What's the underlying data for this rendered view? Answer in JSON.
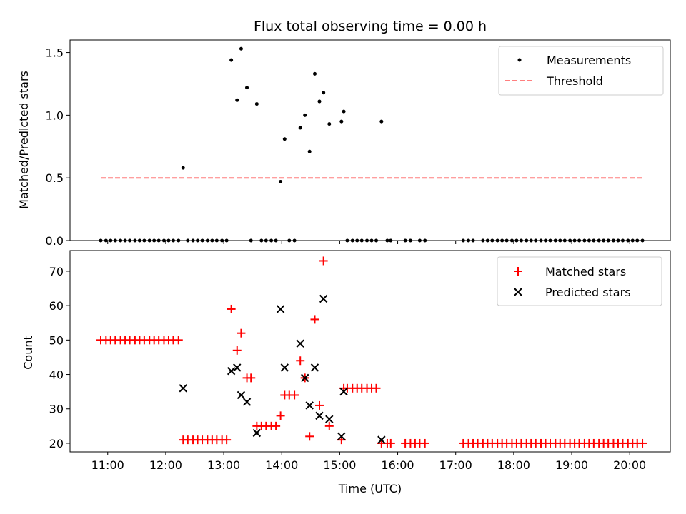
{
  "chart_data": [
    {
      "type": "scatter",
      "title": "Flux total observing time = 0.00 h",
      "xlabel": "",
      "ylabel": "Matched/Predicted stars",
      "xlim": [
        10.35,
        20.7
      ],
      "ylim": [
        0,
        1.6
      ],
      "yticks": [
        0.0,
        0.5,
        1.0,
        1.5
      ],
      "ytick_labels": [
        "0.0",
        "0.5",
        "1.0",
        "1.5"
      ],
      "legend": "top-right",
      "grid": false,
      "series": [
        {
          "name": "Measurements",
          "marker": "dot",
          "color": "#000000",
          "points": [
            [
              12.3,
              0.58
            ],
            [
              13.13,
              1.44
            ],
            [
              13.23,
              1.12
            ],
            [
              13.3,
              1.53
            ],
            [
              13.4,
              1.22
            ],
            [
              13.57,
              1.09
            ],
            [
              13.98,
              0.47
            ],
            [
              14.05,
              0.81
            ],
            [
              14.32,
              0.9
            ],
            [
              14.4,
              1.0
            ],
            [
              14.48,
              0.71
            ],
            [
              14.57,
              1.33
            ],
            [
              14.65,
              1.11
            ],
            [
              14.72,
              1.18
            ],
            [
              14.82,
              0.93
            ],
            [
              15.03,
              0.95
            ],
            [
              15.07,
              1.03
            ],
            [
              15.72,
              0.95
            ],
            [
              10.88,
              0
            ],
            [
              10.97,
              0
            ],
            [
              11.05,
              0
            ],
            [
              11.13,
              0
            ],
            [
              11.22,
              0
            ],
            [
              11.3,
              0
            ],
            [
              11.38,
              0
            ],
            [
              11.47,
              0
            ],
            [
              11.55,
              0
            ],
            [
              11.63,
              0
            ],
            [
              11.72,
              0
            ],
            [
              11.8,
              0
            ],
            [
              11.88,
              0
            ],
            [
              11.97,
              0
            ],
            [
              12.05,
              0
            ],
            [
              12.13,
              0
            ],
            [
              12.22,
              0
            ],
            [
              12.38,
              0
            ],
            [
              12.47,
              0
            ],
            [
              12.55,
              0
            ],
            [
              12.63,
              0
            ],
            [
              12.72,
              0
            ],
            [
              12.8,
              0
            ],
            [
              12.88,
              0
            ],
            [
              12.97,
              0
            ],
            [
              13.05,
              0
            ],
            [
              13.47,
              0
            ],
            [
              13.65,
              0
            ],
            [
              13.73,
              0
            ],
            [
              13.82,
              0
            ],
            [
              13.9,
              0
            ],
            [
              14.13,
              0
            ],
            [
              14.22,
              0
            ],
            [
              15.13,
              0
            ],
            [
              15.22,
              0
            ],
            [
              15.3,
              0
            ],
            [
              15.38,
              0
            ],
            [
              15.47,
              0
            ],
            [
              15.55,
              0
            ],
            [
              15.63,
              0
            ],
            [
              15.82,
              0
            ],
            [
              15.88,
              0
            ],
            [
              16.13,
              0
            ],
            [
              16.22,
              0
            ],
            [
              16.38,
              0
            ],
            [
              16.47,
              0
            ],
            [
              17.13,
              0
            ],
            [
              17.22,
              0
            ],
            [
              17.3,
              0
            ],
            [
              17.47,
              0
            ],
            [
              17.55,
              0
            ],
            [
              17.63,
              0
            ],
            [
              17.72,
              0
            ],
            [
              17.8,
              0
            ],
            [
              17.88,
              0
            ],
            [
              17.97,
              0
            ],
            [
              18.05,
              0
            ],
            [
              18.13,
              0
            ],
            [
              18.22,
              0
            ],
            [
              18.3,
              0
            ],
            [
              18.38,
              0
            ],
            [
              18.47,
              0
            ],
            [
              18.55,
              0
            ],
            [
              18.63,
              0
            ],
            [
              18.72,
              0
            ],
            [
              18.8,
              0
            ],
            [
              18.88,
              0
            ],
            [
              18.97,
              0
            ],
            [
              19.05,
              0
            ],
            [
              19.13,
              0
            ],
            [
              19.22,
              0
            ],
            [
              19.3,
              0
            ],
            [
              19.38,
              0
            ],
            [
              19.47,
              0
            ],
            [
              19.55,
              0
            ],
            [
              19.63,
              0
            ],
            [
              19.72,
              0
            ],
            [
              19.8,
              0
            ],
            [
              19.88,
              0
            ],
            [
              19.97,
              0
            ],
            [
              20.05,
              0
            ],
            [
              20.13,
              0
            ],
            [
              20.22,
              0
            ]
          ]
        },
        {
          "name": "Threshold",
          "type": "line",
          "style": "dashed",
          "color": "#ff7f7f",
          "points": [
            [
              10.88,
              0.5
            ],
            [
              20.22,
              0.5
            ]
          ]
        }
      ]
    },
    {
      "type": "scatter",
      "title": "",
      "xlabel": "Time (UTC)",
      "ylabel": "Count",
      "xlim": [
        10.35,
        20.7
      ],
      "ylim": [
        17.5,
        76
      ],
      "xticks": [
        11,
        12,
        13,
        14,
        15,
        16,
        17,
        18,
        19,
        20
      ],
      "xtick_labels": [
        "11:00",
        "12:00",
        "13:00",
        "14:00",
        "15:00",
        "16:00",
        "17:00",
        "18:00",
        "19:00",
        "20:00"
      ],
      "yticks": [
        20,
        30,
        40,
        50,
        60,
        70
      ],
      "ytick_labels": [
        "20",
        "30",
        "40",
        "50",
        "60",
        "70"
      ],
      "legend": "top-right",
      "grid": false,
      "series": [
        {
          "name": "Matched stars",
          "marker": "plus",
          "color": "#ff0000",
          "points": [
            [
              10.88,
              50
            ],
            [
              10.97,
              50
            ],
            [
              11.05,
              50
            ],
            [
              11.13,
              50
            ],
            [
              11.22,
              50
            ],
            [
              11.3,
              50
            ],
            [
              11.38,
              50
            ],
            [
              11.47,
              50
            ],
            [
              11.55,
              50
            ],
            [
              11.63,
              50
            ],
            [
              11.72,
              50
            ],
            [
              11.8,
              50
            ],
            [
              11.88,
              50
            ],
            [
              11.97,
              50
            ],
            [
              12.05,
              50
            ],
            [
              12.13,
              50
            ],
            [
              12.22,
              50
            ],
            [
              12.3,
              21
            ],
            [
              12.38,
              21
            ],
            [
              12.47,
              21
            ],
            [
              12.55,
              21
            ],
            [
              12.63,
              21
            ],
            [
              12.72,
              21
            ],
            [
              12.8,
              21
            ],
            [
              12.88,
              21
            ],
            [
              12.97,
              21
            ],
            [
              13.05,
              21
            ],
            [
              13.13,
              59
            ],
            [
              13.23,
              47
            ],
            [
              13.3,
              52
            ],
            [
              13.4,
              39
            ],
            [
              13.47,
              39
            ],
            [
              13.57,
              25
            ],
            [
              13.65,
              25
            ],
            [
              13.73,
              25
            ],
            [
              13.82,
              25
            ],
            [
              13.9,
              25
            ],
            [
              13.98,
              28
            ],
            [
              14.05,
              34
            ],
            [
              14.13,
              34
            ],
            [
              14.22,
              34
            ],
            [
              14.32,
              44
            ],
            [
              14.4,
              39
            ],
            [
              14.48,
              22
            ],
            [
              14.57,
              56
            ],
            [
              14.65,
              31
            ],
            [
              14.72,
              73
            ],
            [
              14.82,
              25
            ],
            [
              15.03,
              21
            ],
            [
              15.07,
              36
            ],
            [
              15.13,
              36
            ],
            [
              15.22,
              36
            ],
            [
              15.3,
              36
            ],
            [
              15.38,
              36
            ],
            [
              15.47,
              36
            ],
            [
              15.55,
              36
            ],
            [
              15.63,
              36
            ],
            [
              15.72,
              20
            ],
            [
              15.82,
              20
            ],
            [
              15.88,
              20
            ],
            [
              16.13,
              20
            ],
            [
              16.22,
              20
            ],
            [
              16.3,
              20
            ],
            [
              16.38,
              20
            ],
            [
              16.47,
              20
            ],
            [
              17.13,
              20
            ],
            [
              17.22,
              20
            ],
            [
              17.3,
              20
            ],
            [
              17.38,
              20
            ],
            [
              17.47,
              20
            ],
            [
              17.55,
              20
            ],
            [
              17.63,
              20
            ],
            [
              17.72,
              20
            ],
            [
              17.8,
              20
            ],
            [
              17.88,
              20
            ],
            [
              17.97,
              20
            ],
            [
              18.05,
              20
            ],
            [
              18.13,
              20
            ],
            [
              18.22,
              20
            ],
            [
              18.3,
              20
            ],
            [
              18.38,
              20
            ],
            [
              18.47,
              20
            ],
            [
              18.55,
              20
            ],
            [
              18.63,
              20
            ],
            [
              18.72,
              20
            ],
            [
              18.8,
              20
            ],
            [
              18.88,
              20
            ],
            [
              18.97,
              20
            ],
            [
              19.05,
              20
            ],
            [
              19.13,
              20
            ],
            [
              19.22,
              20
            ],
            [
              19.3,
              20
            ],
            [
              19.38,
              20
            ],
            [
              19.47,
              20
            ],
            [
              19.55,
              20
            ],
            [
              19.63,
              20
            ],
            [
              19.72,
              20
            ],
            [
              19.8,
              20
            ],
            [
              19.88,
              20
            ],
            [
              19.97,
              20
            ],
            [
              20.05,
              20
            ],
            [
              20.13,
              20
            ],
            [
              20.22,
              20
            ]
          ]
        },
        {
          "name": "Predicted stars",
          "marker": "x",
          "color": "#000000",
          "points": [
            [
              12.3,
              36
            ],
            [
              13.13,
              41
            ],
            [
              13.23,
              42
            ],
            [
              13.3,
              34
            ],
            [
              13.4,
              32
            ],
            [
              13.57,
              23
            ],
            [
              13.98,
              59
            ],
            [
              14.05,
              42
            ],
            [
              14.32,
              49
            ],
            [
              14.4,
              39
            ],
            [
              14.48,
              31
            ],
            [
              14.57,
              42
            ],
            [
              14.65,
              28
            ],
            [
              14.72,
              62
            ],
            [
              14.82,
              27
            ],
            [
              15.03,
              22
            ],
            [
              15.07,
              35
            ],
            [
              15.72,
              21
            ]
          ]
        }
      ]
    }
  ]
}
